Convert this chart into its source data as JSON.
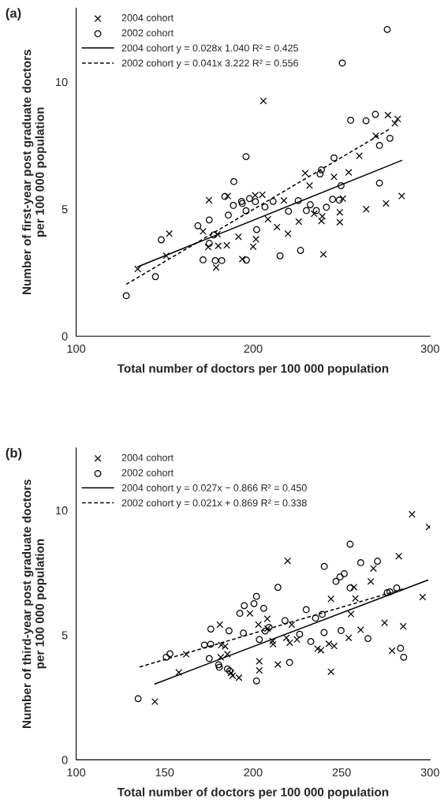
{
  "chart_data": [
    {
      "type": "scatter",
      "title": "(a)",
      "xlabel": "Total number of doctors per 100 000 population",
      "ylabel": "Number of first-year post graduate doctors\nper 100 000 population",
      "xlim": [
        100,
        300
      ],
      "ylim": [
        0,
        12.9
      ],
      "xticks": [
        100,
        200,
        300
      ],
      "yticks": [
        0,
        5,
        10
      ],
      "legend": "top left",
      "grid": false,
      "series": [
        {
          "name": "2004 cohort",
          "marker": "cross",
          "color": "#000000",
          "x": [
            134.8,
            150.9,
            152.6,
            171.7,
            179.9,
            174.6,
            180.3,
            185.1,
            179.1,
            191.7,
            200,
            193.9,
            175.1,
            185.7,
            201.2,
            201.6,
            205.8,
            276.2,
            281.7,
            280.1,
            269.3,
            260,
            254,
            245.7,
            229.4,
            231.9,
            217.4,
            250.7,
            284,
            275.1,
            263.9,
            249,
            249,
            238.6,
            239.1,
            234.5,
            225.8,
            208.4,
            213.5,
            219.7,
            239.7,
            205.2
          ],
          "values": [
            2.64,
            3.16,
            4.03,
            4.12,
            4.01,
            3.5,
            3.55,
            3.57,
            2.7,
            3.91,
            3.52,
            3.03,
            5.35,
            5.51,
            5.54,
            3.81,
            9.25,
            8.69,
            8.54,
            8.37,
            7.88,
            7.09,
            6.44,
            6.26,
            6.41,
            5.92,
            5.33,
            5.41,
            5.51,
            5.22,
            4.99,
            4.87,
            4.48,
            4.53,
            4.71,
            4.81,
            4.5,
            4.6,
            4.29,
            4.03,
            3.22,
            5.56
          ]
        },
        {
          "name": "2002 cohort",
          "marker": "circle",
          "color": "#000000",
          "x": [
            128.3,
            144.8,
            148.1,
            168.8,
            175.2,
            177.7,
            175.2,
            171.7,
            178.6,
            182.3,
            186,
            188.8,
            189.1,
            196,
            184,
            193.5,
            193.9,
            196,
            198,
            201.3,
            196.2,
            202,
            275.8,
            250.4,
            255.1,
            263.8,
            269.1,
            277.3,
            271.4,
            271.4,
            245.7,
            238.6,
            237.8,
            249.7,
            225.5,
            211.3,
            206.7,
            220,
            232.3,
            230.1,
            235.7,
            241.4,
            244.9,
            248.7,
            215.2,
            226.8
          ],
          "values": [
            1.59,
            2.34,
            3.79,
            4.34,
            4.57,
            3.98,
            3.65,
            3.0,
            2.97,
            2.97,
            4.76,
            5.14,
            6.08,
            7.06,
            5.49,
            5.3,
            5.22,
            4.93,
            5.41,
            5.29,
            2.99,
            4.19,
            12.06,
            10.74,
            8.49,
            8.47,
            8.72,
            7.78,
            7.5,
            6.02,
            7.01,
            6.54,
            6.38,
            5.92,
            5.33,
            5.3,
            5.08,
            4.91,
            5.17,
            4.94,
            4.94,
            5.07,
            5.38,
            5.35,
            3.16,
            3.37
          ]
        },
        {
          "name": "2004 cohort y = 0.028x 1.040 R² = 0.425",
          "type": "line",
          "line_style": "solid",
          "color": "#000000",
          "x": [
            134.8,
            284
          ],
          "values": [
            2.73,
            6.91
          ]
        },
        {
          "name": "2002 cohort y = 0.041x 3.222 R² = 0.556",
          "type": "line",
          "line_style": "dashed",
          "color": "#000000",
          "x": [
            128.3,
            277.3
          ],
          "values": [
            2.04,
            8.15
          ]
        }
      ]
    },
    {
      "type": "scatter",
      "title": "(b)",
      "xlabel": "Total number of doctors per 100 000 population",
      "ylabel": "Number of third-year post graduate doctors\nper 100 000 population",
      "xlim": [
        100,
        300
      ],
      "ylim": [
        0,
        12.5
      ],
      "xticks": [
        100,
        150,
        200,
        250,
        300
      ],
      "yticks": [
        0,
        5,
        10
      ],
      "legend": "top left",
      "grid": false,
      "series": [
        {
          "name": "2004 cohort",
          "marker": "cross",
          "color": "#000000",
          "x": [
            144.5,
            158,
            162.2,
            181.2,
            182,
            184.2,
            185.5,
            181.7,
            187.5,
            188.4,
            192,
            198.2,
            289.8,
            299.4,
            282.3,
            219.5,
            268,
            266.5,
            257,
            257.8,
            244,
            295.8,
            255.3,
            274.3,
            284.8,
            208,
            203,
            208.1,
            221.8,
            260.8,
            254,
            218.8,
            220.7,
            211,
            211.3,
            224.8,
            236.4,
            238.3,
            242.8,
            245.8,
            278.5,
            203.5,
            203.5,
            214,
            244
          ],
          "values": [
            2.33,
            3.5,
            4.23,
            5.42,
            4.6,
            4.55,
            4.23,
            4.11,
            3.48,
            3.37,
            3.29,
            5.87,
            9.84,
            9.33,
            8.16,
            7.97,
            7.67,
            7.15,
            6.92,
            6.47,
            6.45,
            6.52,
            5.84,
            5.49,
            5.35,
            5.65,
            5.42,
            5.26,
            5.42,
            5.21,
            4.89,
            4.89,
            4.69,
            4.76,
            4.63,
            4.82,
            4.45,
            4.39,
            4.65,
            4.56,
            4.37,
            3.95,
            3.58,
            3.82,
            3.53
          ]
        },
        {
          "name": "2002 cohort",
          "marker": "circle",
          "color": "#000000",
          "x": [
            135,
            150.9,
            153,
            175.2,
            172.5,
            176,
            176.1,
            180.5,
            180.9,
            186.4,
            185.5,
            186.8,
            192.5,
            195,
            194.5,
            200.5,
            201.9,
            201.9,
            254.8,
            240.2,
            260.8,
            270.3,
            246.8,
            249.1,
            251.5,
            214,
            254.8,
            206,
            230,
            239,
            235.3,
            218,
            275.8,
            277.3,
            281.1,
            209,
            206.8,
            203.5,
            226.3,
            232.6,
            240.1,
            249.7,
            264.9,
            283.3,
            285.1,
            220.6
          ],
          "values": [
            2.45,
            4.11,
            4.25,
            4.06,
            4.6,
            4.63,
            5.24,
            3.81,
            3.71,
            5.17,
            3.64,
            3.56,
            5.87,
            6.18,
            5.08,
            6.26,
            6.55,
            3.16,
            8.64,
            7.75,
            7.9,
            7.96,
            7.15,
            7.33,
            7.46,
            6.91,
            6.89,
            6.07,
            6.02,
            5.83,
            5.68,
            5.58,
            6.7,
            6.73,
            6.89,
            5.31,
            5.16,
            4.82,
            5.03,
            4.74,
            5.1,
            5.18,
            4.86,
            4.47,
            4.11,
            3.9
          ]
        },
        {
          "name": "2004 cohort y = 0.027x − 0.866 R² = 0.450",
          "type": "line",
          "line_style": "solid",
          "color": "#000000",
          "x": [
            144.5,
            298.7
          ],
          "values": [
            3.04,
            7.2
          ]
        },
        {
          "name": "2002 cohort y = 0.021x + 0.869 R² = 0.338",
          "type": "line",
          "line_style": "dashed",
          "color": "#000000",
          "x": [
            135.9,
            285
          ],
          "values": [
            3.72,
            6.85
          ]
        }
      ]
    }
  ]
}
